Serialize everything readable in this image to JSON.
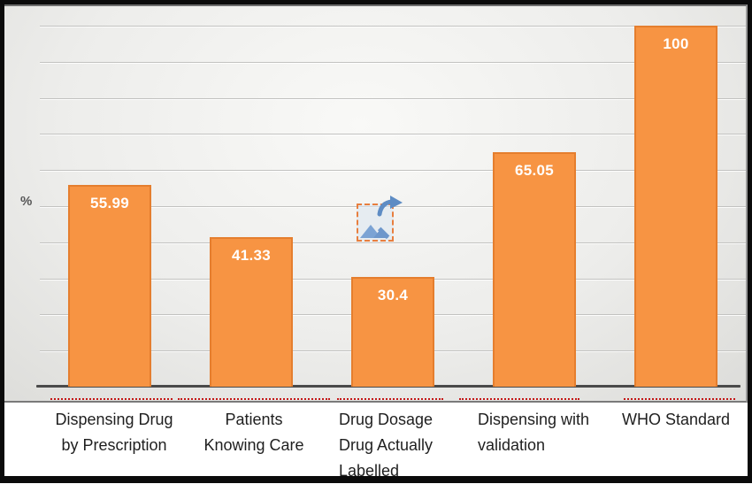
{
  "chart_data": {
    "type": "bar",
    "title": "",
    "ylabel": "%",
    "ylim": [
      0,
      100
    ],
    "gridline_step": 10,
    "legend": "none",
    "categories": [
      "Dispensing Drug by Prescription",
      "Patients Knowing Care",
      "Drug Dosage Drug Actually Labelled",
      "Dispensing with validation",
      "WHO Standard"
    ],
    "categories_display": [
      [
        "Dispensing Drug",
        "by Prescription"
      ],
      [
        "Patients",
        "Knowing Care"
      ],
      [
        "Drug Dosage",
        "Drug Actually",
        "Labelled"
      ],
      [
        "Dispensing with",
        "validation"
      ],
      [
        "WHO Standard"
      ]
    ],
    "values": [
      55.99,
      41.33,
      30.4,
      65.05,
      100
    ],
    "data_labels": [
      "55.99",
      "41.33",
      "30.4",
      "65.05",
      "100"
    ]
  },
  "colors": {
    "bar_fill": "#F79443",
    "bar_border": "#E57E2E",
    "data_label": "#FFFFFF",
    "axis_line": "#4A4A4A",
    "gridline": "#C2C2C0",
    "spellcheck_underline": "#C00000",
    "category_text": "#1F1F1F",
    "y_axis_title_color": "#575757",
    "frame_border": "#000000",
    "placeholder_border": "#E87F3F",
    "placeholder_glyph": "#7BA3D4"
  },
  "icons": {
    "placeholder": "broken-image-placeholder-icon",
    "placeholder_arrow": "refresh-arrow-icon",
    "placeholder_picture": "picture-mountains-icon"
  }
}
